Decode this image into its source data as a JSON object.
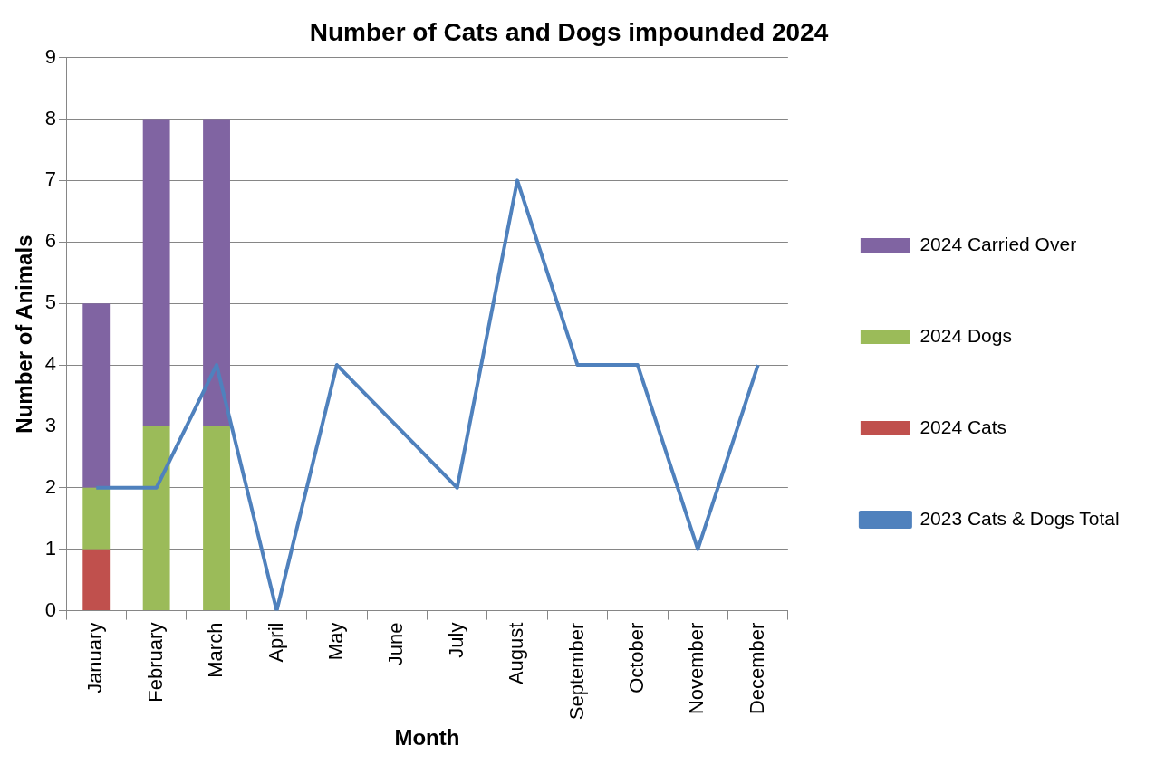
{
  "chart_data": {
    "type": "bar",
    "title": "Number of Cats and Dogs impounded 2024",
    "xlabel": "Month",
    "ylabel": "Number of Animals",
    "categories": [
      "January",
      "February",
      "March",
      "April",
      "May",
      "June",
      "July",
      "August",
      "September",
      "October",
      "November",
      "December"
    ],
    "stacked": true,
    "series": [
      {
        "name": "2024 Cats",
        "color": "#c0504d",
        "values": [
          1,
          0,
          0,
          null,
          null,
          null,
          null,
          null,
          null,
          null,
          null,
          null
        ]
      },
      {
        "name": "2024 Dogs",
        "color": "#9bbb59",
        "values": [
          1,
          3,
          3,
          null,
          null,
          null,
          null,
          null,
          null,
          null,
          null,
          null
        ]
      },
      {
        "name": "2024 Carried Over",
        "color": "#8064a2",
        "values": [
          3,
          5,
          5,
          null,
          null,
          null,
          null,
          null,
          null,
          null,
          null,
          null
        ]
      },
      {
        "name": "2023 Cats & Dogs Total",
        "type": "line",
        "color": "#4f81bd",
        "values": [
          2,
          2,
          4,
          0,
          4,
          3,
          2,
          7,
          4,
          4,
          1,
          4
        ]
      }
    ],
    "ylim": [
      0,
      9
    ],
    "yticks": [
      0,
      1,
      2,
      3,
      4,
      5,
      6,
      7,
      8,
      9
    ],
    "grid": "y",
    "legend": "right",
    "marker": "none"
  }
}
